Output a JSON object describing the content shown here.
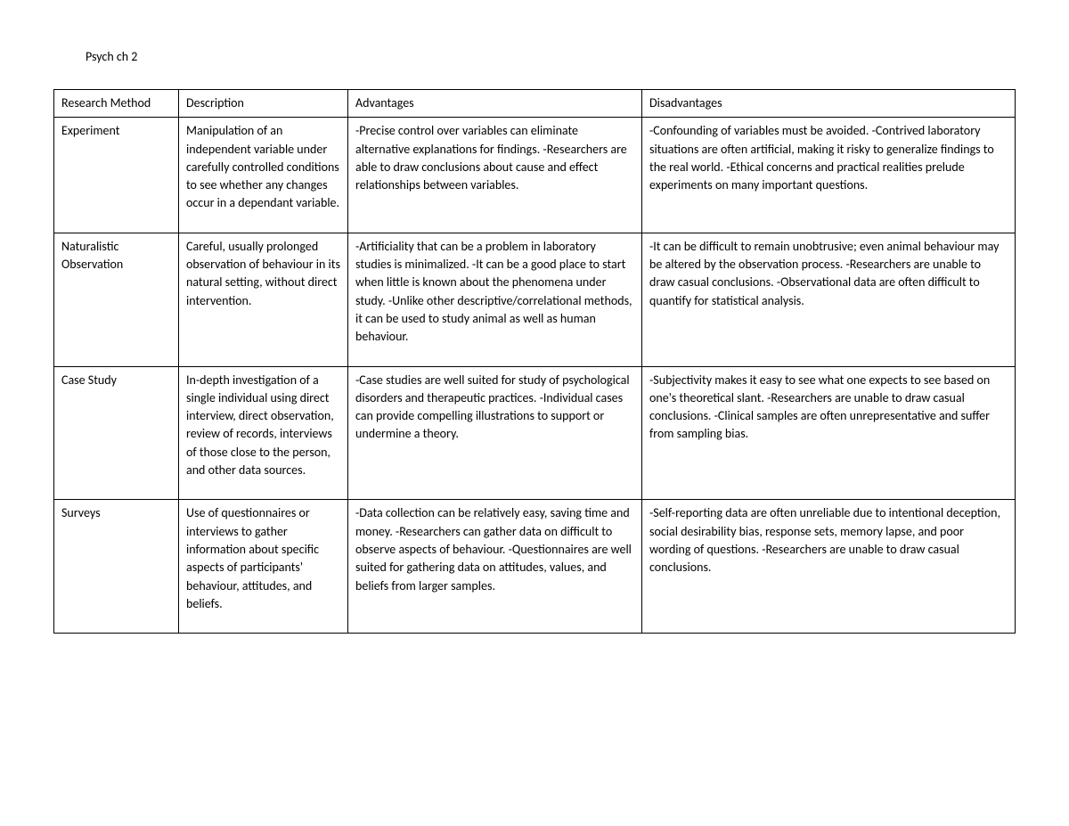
{
  "page": {
    "title": "Psych ch 2"
  },
  "table": {
    "columns": [
      "Research Method",
      "Description",
      "Advantages",
      "Disadvantages"
    ],
    "rows": [
      {
        "method": "Experiment",
        "description": "Manipulation of an independent variable under carefully controlled conditions to see whether any changes occur in a dependant variable.",
        "advantages": "-Precise control over variables can eliminate alternative explanations for findings.\n-Researchers are able to draw conclusions about cause and effect relationships between variables.",
        "disadvantages": "-Confounding of variables must be avoided.\n-Contrived laboratory situations are often artificial, making it risky to generalize findings to the real world.\n-Ethical concerns and practical realities prelude experiments on many important questions."
      },
      {
        "method": "Naturalistic Observation",
        "description": "Careful, usually prolonged observation of behaviour in its natural setting, without direct intervention.",
        "advantages": "-Artificiality that can be a problem in laboratory studies is minimalized.\n-It can be a good place to start when little is known about the phenomena under study.\n-Unlike other descriptive/correlational methods, it can be used to study animal as well as human behaviour.",
        "disadvantages": "-It can be difficult to remain unobtrusive; even animal behaviour may be altered by the observation process.\n-Researchers are unable to draw casual conclusions.\n-Observational data are often difficult to quantify for statistical analysis."
      },
      {
        "method": "Case Study",
        "description": "In-depth investigation of a single individual using direct interview, direct observation, review of records, interviews of those close to the person, and other data sources.",
        "advantages": "-Case studies are well suited for study of psychological disorders and therapeutic practices.\n-Individual cases can provide compelling illustrations to support or undermine a theory.",
        "disadvantages": "-Subjectivity makes it easy to see what one expects to see based on one's theoretical slant.\n-Researchers are unable to draw casual conclusions.\n-Clinical samples are often unrepresentative and suffer from sampling bias."
      },
      {
        "method": "Surveys",
        "description": "Use of questionnaires or interviews to gather information about specific aspects of participants' behaviour, attitudes, and beliefs.",
        "advantages": "-Data collection can be relatively easy, saving time and money.\n-Researchers can gather data on difficult to observe aspects of behaviour.\n-Questionnaires are well suited for gathering data on attitudes, values, and beliefs from larger samples.",
        "disadvantages": "-Self-reporting data are often unreliable due to intentional deception, social desirability bias, response sets, memory lapse, and poor wording of questions.\n-Researchers are unable to draw casual conclusions."
      }
    ]
  }
}
